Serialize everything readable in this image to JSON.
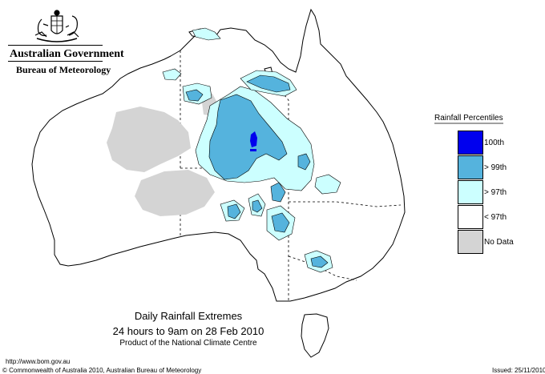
{
  "header": {
    "government": "Australian Government",
    "bureau": "Bureau of Meteorology"
  },
  "caption": {
    "title": "Daily Rainfall Extremes",
    "period": "24 hours to 9am on 28 Feb 2010",
    "product": "Product of the National Climate Centre"
  },
  "footer": {
    "url": "http://www.bom.gov.au",
    "copyright": "© Commonwealth of Australia 2010, Australian Bureau of Meteorology",
    "issued": "Issued: 25/11/2010"
  },
  "legend": {
    "title": "Rainfall Percentiles",
    "items": [
      {
        "label": "100th",
        "color": "#0000ee"
      },
      {
        "label": "> 99th",
        "color": "#55b3dd"
      },
      {
        "label": "> 97th",
        "color": "#ccffff"
      },
      {
        "label": "< 97th",
        "color": "#ffffff"
      },
      {
        "label": "No Data",
        "color": "#d4d4d4"
      }
    ]
  },
  "colors": {
    "no_data": "#d4d4d4",
    "p97": "#ccffff",
    "p99": "#55b3dd",
    "p100": "#0000ee",
    "outline": "#000000"
  }
}
